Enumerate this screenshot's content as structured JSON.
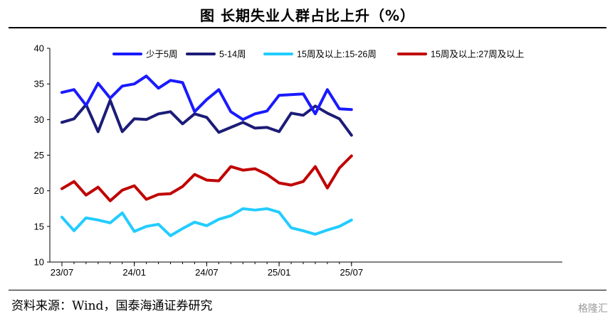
{
  "header": {
    "title": "图    长期失业人群占比上升（%）"
  },
  "footer": {
    "source": "资料来源：Wind，国泰海通证券研究",
    "watermark": "格隆汇"
  },
  "chart_data": {
    "type": "line",
    "title": "",
    "xlabel": "",
    "ylabel": "",
    "ylim": [
      10,
      40
    ],
    "yticks": [
      10,
      15,
      20,
      25,
      30,
      35,
      40
    ],
    "grid": false,
    "legend_position": "top",
    "x": [
      "23/07",
      "23/08",
      "23/09",
      "23/10",
      "23/11",
      "23/12",
      "24/01",
      "24/02",
      "24/03",
      "24/04",
      "24/05",
      "24/06",
      "24/07",
      "24/08",
      "24/09",
      "24/10",
      "24/11",
      "24/12",
      "25/01",
      "25/02",
      "25/03",
      "25/04",
      "25/05",
      "25/06",
      "25/07"
    ],
    "xtick_labels": [
      "23/07",
      "24/01",
      "24/07",
      "25/01",
      "25/07"
    ],
    "series": [
      {
        "name": "少于5周",
        "color": "#1a1aff",
        "values": [
          33.8,
          34.2,
          32.0,
          35.1,
          33.0,
          34.7,
          35.0,
          36.1,
          34.4,
          35.5,
          35.2,
          31.1,
          32.8,
          34.2,
          31.1,
          30.0,
          30.8,
          31.2,
          33.4,
          33.5,
          33.6,
          30.8,
          34.2,
          31.5,
          31.4
        ]
      },
      {
        "name": "5-14周",
        "color": "#1c1c78",
        "values": [
          29.6,
          30.1,
          32.1,
          28.3,
          32.7,
          28.3,
          30.1,
          30.0,
          30.8,
          31.1,
          29.4,
          30.8,
          30.3,
          28.2,
          28.9,
          29.6,
          28.8,
          28.9,
          28.3,
          30.9,
          30.6,
          31.9,
          30.9,
          30.1,
          27.8
        ]
      },
      {
        "name": "15周及以上:15-26周",
        "color": "#22ccff",
        "values": [
          16.3,
          14.4,
          16.2,
          15.9,
          15.5,
          16.9,
          14.3,
          15.0,
          15.3,
          13.7,
          14.7,
          15.6,
          15.1,
          16.0,
          16.5,
          17.5,
          17.3,
          17.5,
          17.0,
          14.8,
          14.4,
          13.9,
          14.5,
          15.0,
          15.9
        ]
      },
      {
        "name": "15周及以上:27周及以上",
        "color": "#c00000",
        "values": [
          20.3,
          21.3,
          19.4,
          20.5,
          18.6,
          20.1,
          20.7,
          18.8,
          19.5,
          19.6,
          20.6,
          22.3,
          21.5,
          21.4,
          23.4,
          22.9,
          23.1,
          22.3,
          21.1,
          20.8,
          21.3,
          23.4,
          20.4,
          23.2,
          24.9
        ]
      }
    ]
  }
}
